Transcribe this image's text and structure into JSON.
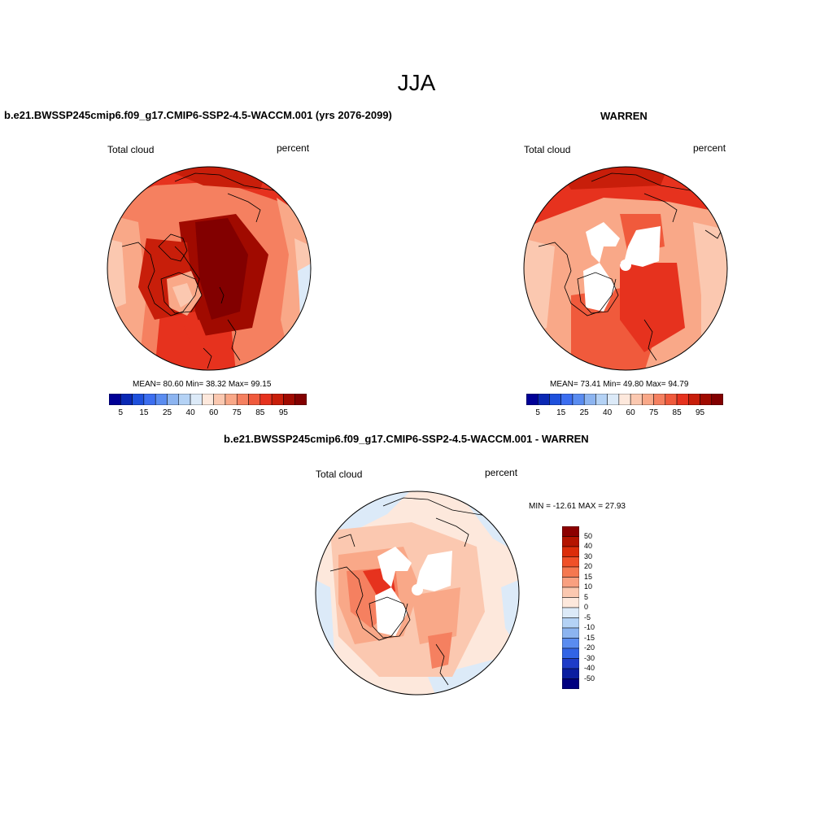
{
  "figure": {
    "season": "JJA"
  },
  "panels": {
    "model": {
      "title": "b.e21.BWSSP245cmip6.f09_g17.CMIP6-SSP2-4.5-WACCM.001 (yrs 2076-2099)",
      "variable": "Total cloud",
      "units": "percent",
      "stats": "MEAN=  80.60  Min=  38.32  Max=  99.15"
    },
    "obs": {
      "title": "WARREN",
      "variable": "Total cloud",
      "units": "percent",
      "stats": "MEAN=  73.41  Min=  49.80  Max=  94.79"
    },
    "diff": {
      "title": "b.e21.BWSSP245cmip6.f09_g17.CMIP6-SSP2-4.5-WACCM.001 - WARREN",
      "variable": "Total cloud",
      "units": "percent",
      "stats": "MIN = -12.61 MAX =  27.93"
    }
  },
  "colorbars": {
    "abs": {
      "tick_labels": [
        "5",
        "15",
        "25",
        "40",
        "60",
        "75",
        "85",
        "95"
      ],
      "colors": [
        "#000096",
        "#0a28b4",
        "#1e50dc",
        "#3c6ef0",
        "#5a8cf0",
        "#8cb4f0",
        "#b4d2f5",
        "#dceaf8",
        "#fde8dc",
        "#fbc8b0",
        "#f9a888",
        "#f58060",
        "#f05a3c",
        "#e6321e",
        "#c81e0a",
        "#a00a00",
        "#820000"
      ]
    },
    "diff": {
      "tick_labels": [
        "50",
        "40",
        "30",
        "20",
        "15",
        "10",
        "5",
        "0",
        "-5",
        "-10",
        "-15",
        "-20",
        "-30",
        "-40",
        "-50"
      ],
      "colors": [
        "#8c0000",
        "#b41400",
        "#dc2d0a",
        "#f05028",
        "#f57850",
        "#f9a080",
        "#fbc8b0",
        "#fde8dc",
        "#dceaf8",
        "#b4d2f5",
        "#8cb4f0",
        "#5a8cf0",
        "#3264e6",
        "#1e3cc8",
        "#0a1ea0",
        "#000080"
      ]
    }
  },
  "colors": {
    "land_missing": "#ffffff",
    "coastline": "#000000"
  }
}
